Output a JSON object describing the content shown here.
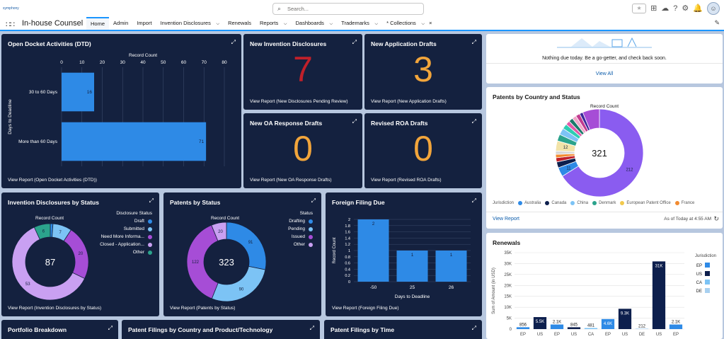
{
  "header": {
    "logo_text": "symphony",
    "search_placeholder": "Search...",
    "star_label": "★"
  },
  "nav": {
    "app_name": "In-house Counsel",
    "items": [
      {
        "label": "Home",
        "active": true,
        "chevron": false
      },
      {
        "label": "Admin",
        "chevron": false
      },
      {
        "label": "Import",
        "chevron": false
      },
      {
        "label": "Invention Disclosures",
        "chevron": true
      },
      {
        "label": "Renewals",
        "chevron": false
      },
      {
        "label": "Reports",
        "chevron": true
      },
      {
        "label": "Dashboards",
        "chevron": true
      },
      {
        "label": "Trademarks",
        "chevron": true
      },
      {
        "label": "* Collections",
        "chevron": true,
        "close": true
      }
    ]
  },
  "docket": {
    "title": "Open Docket Activities (DTD)",
    "link": "View Report (Open Docket Activities (DTD))",
    "chart_data": {
      "type": "bar",
      "orientation": "horizontal",
      "categories": [
        "30 to 60 Days",
        "More than 60 Days"
      ],
      "values": [
        16,
        71
      ],
      "xlabel": "Record Count",
      "ylabel": "Days to Deadline",
      "xticks": [
        0,
        10,
        20,
        30,
        40,
        50,
        60,
        70,
        80
      ],
      "xlim": [
        0,
        80
      ],
      "color": "#2e8ae6"
    }
  },
  "metrics": [
    {
      "title": "New Invention Disclosures",
      "value": "7",
      "color": "#c0202a",
      "link": "View Report (New Disclosures Pending Review)"
    },
    {
      "title": "New Application Drafts",
      "value": "3",
      "color": "#f2a53b",
      "link": "View Report (New Application Drafts)"
    },
    {
      "title": "New OA Response Drafts",
      "value": "0",
      "color": "#f2a53b",
      "link": "View Report (New OA Response Drafts)"
    },
    {
      "title": "Revised ROA Drafts",
      "value": "0",
      "color": "#f2a53b",
      "link": "View Report (Revised ROA Drafts)"
    }
  ],
  "disclosures": {
    "title": "Invention Disclosures by Status",
    "link": "View Report (Invention Disclosures by Status)",
    "center": "87",
    "sub": "Record Count",
    "legend_title": "Disclosure Status",
    "chart_data": {
      "type": "pie",
      "total": 87,
      "slices": [
        {
          "label": "Draft",
          "value": 1,
          "color": "#2e8ae6"
        },
        {
          "label": "Submitted",
          "value": 7,
          "color": "#7cc3f5"
        },
        {
          "label": "Need More Informa...",
          "value": 20,
          "color": "#a64dd6"
        },
        {
          "label": "Closed - Application...",
          "value": 53,
          "color": "#c9a0f2"
        },
        {
          "label": "Other",
          "value": 6,
          "color": "#2ba38c"
        }
      ]
    }
  },
  "patents_status": {
    "title": "Patents by Status",
    "link": "View Report (Patents by Status)",
    "center": "323",
    "sub": "Record Count",
    "legend_title": "Status",
    "chart_data": {
      "type": "pie",
      "total": 323,
      "slices": [
        {
          "label": "Drafting",
          "value": 91,
          "color": "#2e8ae6"
        },
        {
          "label": "Pending",
          "value": 90,
          "color": "#7cc3f5"
        },
        {
          "label": "Issued",
          "value": 122,
          "color": "#a64dd6"
        },
        {
          "label": "Other",
          "value": 20,
          "color": "#c9a0f2"
        }
      ]
    }
  },
  "foreign": {
    "title": "Foreign Filing Due",
    "link": "View Report (Foreign Filing Due)",
    "chart_data": {
      "type": "bar",
      "categories": [
        "-50",
        "25",
        "26"
      ],
      "values": [
        2,
        1,
        1
      ],
      "xlabel": "Days to Deadline",
      "ylabel": "Record Count",
      "yticks": [
        "0",
        "0.2",
        "0.4",
        "0.6",
        "0.8",
        "1",
        "1.2",
        "1.4",
        "1.6",
        "1.8",
        "2"
      ],
      "ylim": [
        0,
        2
      ],
      "color": "#2e8ae6"
    }
  },
  "nothing_due": {
    "text": "Nothing due today. Be a go-getter, and check back soon.",
    "link": "View All"
  },
  "patents_country": {
    "title": "Patents by Country and Status",
    "sub": "Record Count",
    "center": "321",
    "legend_title": "Jurisdiction",
    "link": "View Report",
    "timestamp": "As of Today at 4:55 AM",
    "legend": [
      {
        "label": "Australia",
        "color": "#2e8ae6"
      },
      {
        "label": "Canada",
        "color": "#0d1f4d"
      },
      {
        "label": "China",
        "color": "#7cc3f5"
      },
      {
        "label": "Denmark",
        "color": "#2ba38c"
      },
      {
        "label": "European Patent Office",
        "color": "#f2c94c"
      },
      {
        "label": "France",
        "color": "#f28b30"
      }
    ],
    "chart_data": {
      "type": "pie",
      "total": 321,
      "slices": [
        {
          "label": "",
          "value": 212,
          "color": "#8a5cf0",
          "show": "212"
        },
        {
          "label": "",
          "value": 11,
          "color": "#2e8ae6",
          "show": "11"
        },
        {
          "label": "",
          "value": 7,
          "color": "#0d1f4d"
        },
        {
          "label": "",
          "value": 5,
          "color": "#c0202a"
        },
        {
          "label": "",
          "value": 4,
          "color": "#f28b30"
        },
        {
          "label": "",
          "value": 4,
          "color": "#d8d8d8"
        },
        {
          "label": "",
          "value": 12,
          "color": "#f2e3a8",
          "show": "12"
        },
        {
          "label": "",
          "value": 8,
          "color": "#2ba38c"
        },
        {
          "label": "",
          "value": 8,
          "color": "#7cc3f5"
        },
        {
          "label": "",
          "value": 6,
          "color": "#2ecdb3"
        },
        {
          "label": "",
          "value": 5,
          "color": "#e25aa8"
        },
        {
          "label": "",
          "value": 5,
          "color": "#1c7a6b"
        },
        {
          "label": "",
          "value": 5,
          "color": "#f0a6c8"
        },
        {
          "label": "",
          "value": 5,
          "color": "#c13b8f"
        },
        {
          "label": "",
          "value": 4,
          "color": "#3a2a9a"
        },
        {
          "label": "",
          "value": 20,
          "color": "#a64dd6"
        }
      ]
    }
  },
  "renewals": {
    "title": "Renewals",
    "legend_title": "Jurisdiction",
    "legend": [
      {
        "label": "EP",
        "color": "#2e8ae6"
      },
      {
        "label": "US",
        "color": "#0d1f4d"
      },
      {
        "label": "CA",
        "color": "#7cc3f5"
      },
      {
        "label": "DE",
        "color": "#a8d0f0"
      }
    ],
    "chart_data": {
      "type": "bar",
      "ylabel": "Sum of Amount (in USD)",
      "yticks": [
        "0",
        "5K",
        "10K",
        "15K",
        "20K",
        "25K",
        "30K",
        "35K"
      ],
      "ylim": [
        0,
        35000
      ],
      "bars": [
        {
          "cat": "EP",
          "value": 856,
          "label": "856",
          "color": "#2e8ae6"
        },
        {
          "cat": "US",
          "value": 5500,
          "label": "5.5K",
          "color": "#0d1f4d"
        },
        {
          "cat": "EP",
          "value": 2100,
          "label": "2.1K",
          "color": "#2e8ae6"
        },
        {
          "cat": "US",
          "value": 845,
          "label": "845",
          "color": "#0d1f4d"
        },
        {
          "cat": "CA",
          "value": 481,
          "label": "481",
          "color": "#7cc3f5"
        },
        {
          "cat": "EP",
          "value": 4600,
          "label": "4.6K",
          "color": "#2e8ae6"
        },
        {
          "cat": "US",
          "value": 9300,
          "label": "9.3K",
          "color": "#0d1f4d"
        },
        {
          "cat": "DE",
          "value": 212,
          "label": "212",
          "color": "#a8d0f0"
        },
        {
          "cat": "US",
          "value": 31000,
          "label": "31K",
          "color": "#0d1f4d"
        },
        {
          "cat": "EP",
          "value": 2100,
          "label": "2.1K",
          "color": "#2e8ae6"
        }
      ]
    }
  },
  "bottom": [
    {
      "title": "Portfolio Breakdown"
    },
    {
      "title": "Patent Filings by Country and Product/Technology"
    },
    {
      "title": "Patent Filings by Time"
    }
  ]
}
